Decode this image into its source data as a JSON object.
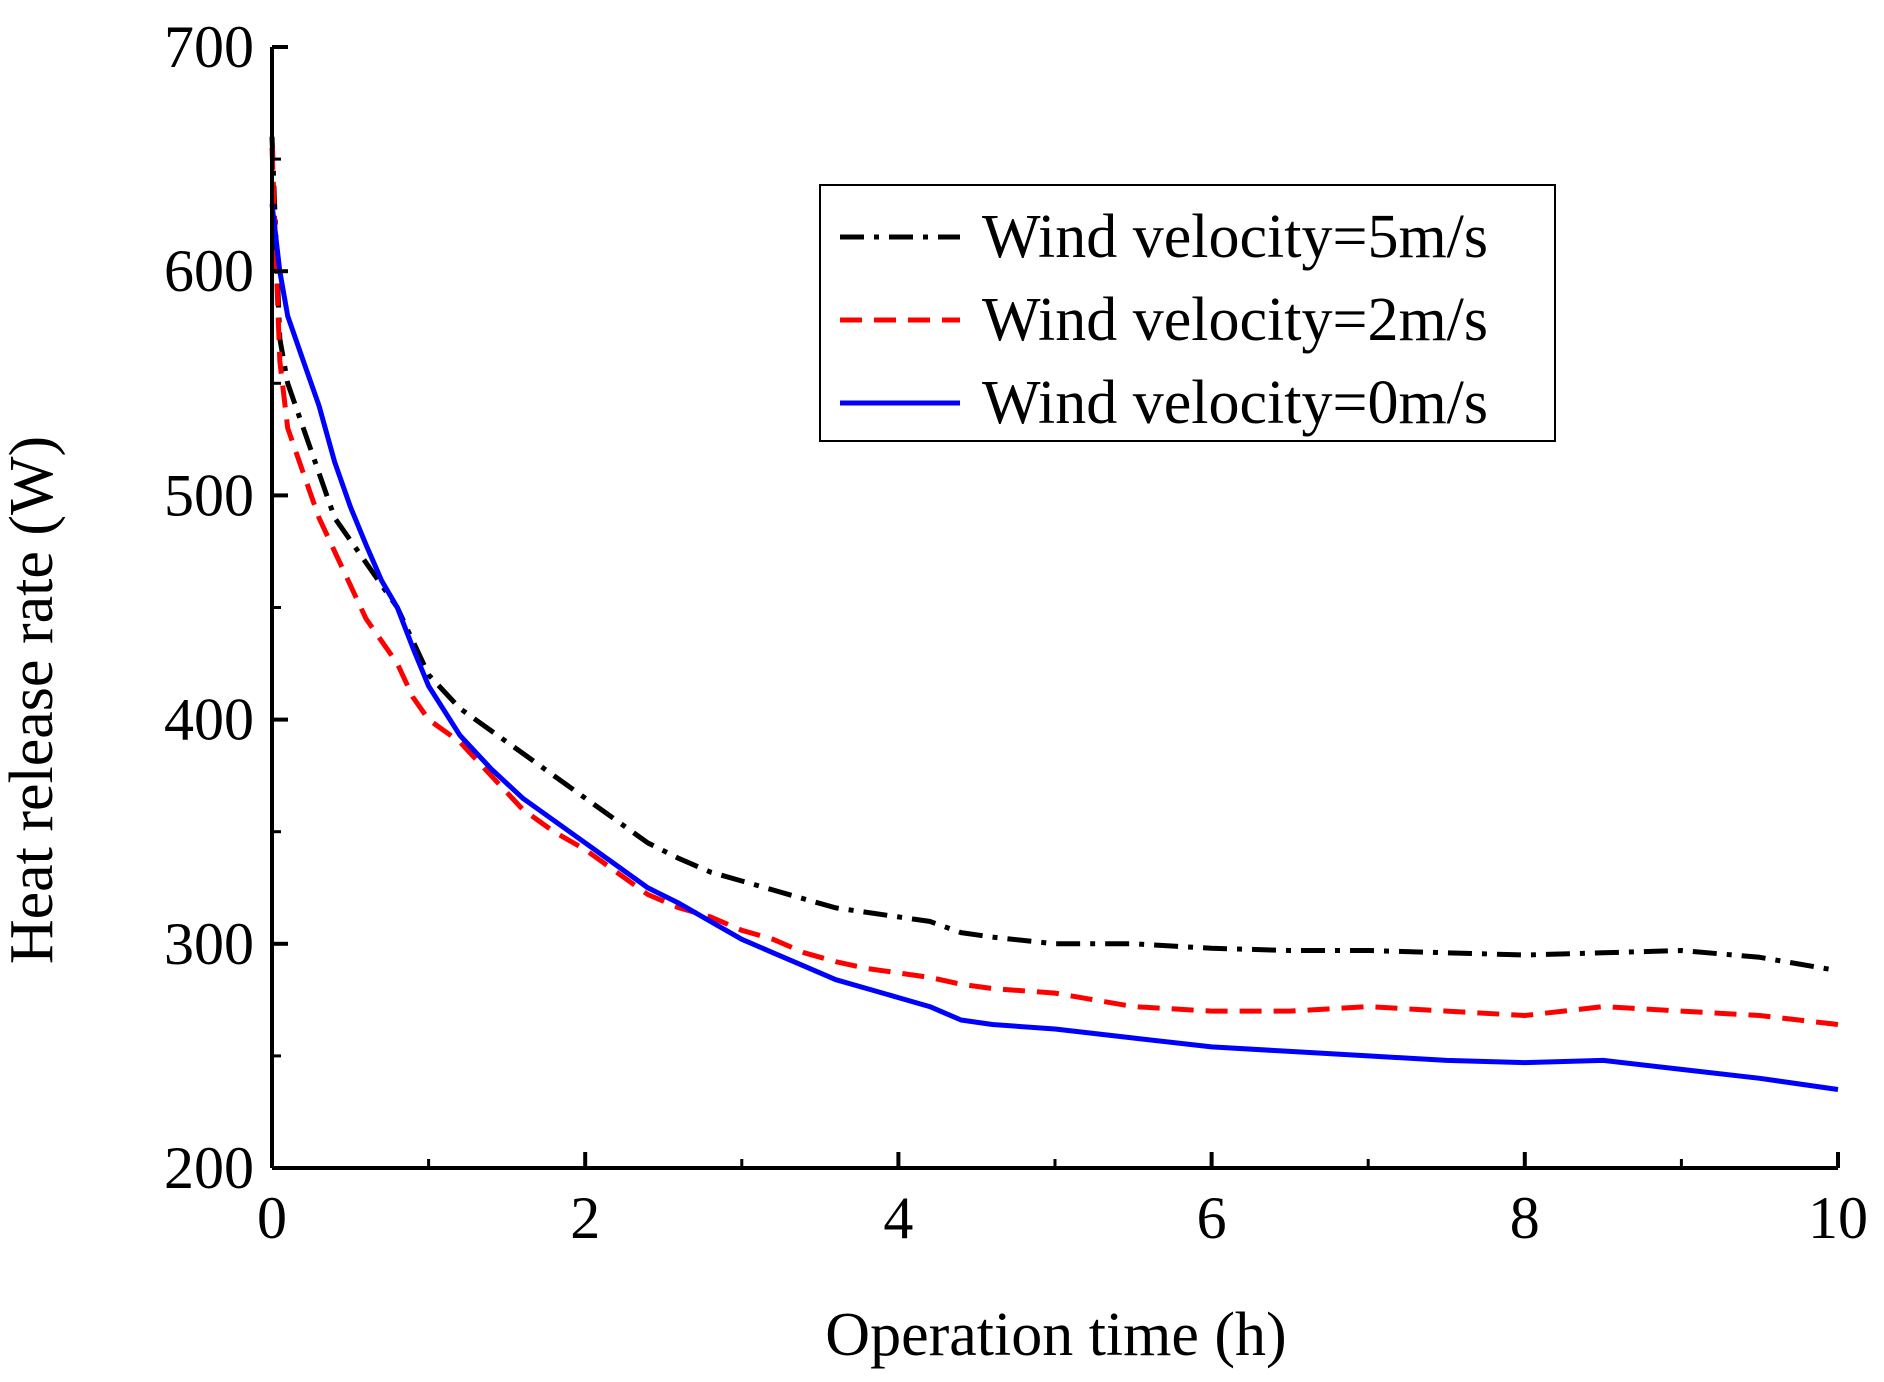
{
  "chart_data": {
    "type": "line",
    "title": "",
    "xlabel": "Operation time (h)",
    "ylabel": "Heat release rate (W)",
    "xlim": [
      0,
      10
    ],
    "ylim": [
      200,
      700
    ],
    "x_ticks": [
      "0",
      "2",
      "4",
      "6",
      "8",
      "10"
    ],
    "y_ticks": [
      "200",
      "300",
      "400",
      "500",
      "600",
      "700"
    ],
    "grid": false,
    "legend_position": "top-right",
    "series": [
      {
        "name": "Wind velocity=5m/s",
        "color": "#000000",
        "dash": "dash-dot",
        "x": [
          0,
          0.05,
          0.1,
          0.2,
          0.3,
          0.4,
          0.5,
          0.6,
          0.7,
          0.8,
          0.9,
          1.0,
          1.2,
          1.4,
          1.6,
          1.8,
          2.0,
          2.2,
          2.4,
          2.6,
          2.8,
          3.0,
          3.2,
          3.4,
          3.6,
          3.8,
          4.0,
          4.2,
          4.4,
          4.6,
          5.0,
          5.5,
          6.0,
          6.5,
          7.0,
          7.5,
          8.0,
          8.5,
          9.0,
          9.5,
          10.0
        ],
        "values": [
          660,
          570,
          550,
          530,
          510,
          490,
          480,
          470,
          460,
          450,
          435,
          420,
          405,
          395,
          385,
          375,
          365,
          355,
          345,
          338,
          332,
          328,
          324,
          320,
          316,
          314,
          312,
          310,
          305,
          303,
          300,
          300,
          298,
          297,
          297,
          296,
          295,
          296,
          297,
          294,
          288
        ]
      },
      {
        "name": "Wind velocity=2m/s",
        "color": "#ff0000",
        "dash": "dashed",
        "x": [
          0,
          0.05,
          0.1,
          0.2,
          0.3,
          0.4,
          0.5,
          0.6,
          0.7,
          0.8,
          0.9,
          1.0,
          1.2,
          1.4,
          1.6,
          1.8,
          2.0,
          2.2,
          2.4,
          2.6,
          2.8,
          3.0,
          3.2,
          3.4,
          3.6,
          3.8,
          4.0,
          4.2,
          4.4,
          4.6,
          5.0,
          5.5,
          6.0,
          6.5,
          7.0,
          7.5,
          8.0,
          8.5,
          9.0,
          9.5,
          10.0
        ],
        "values": [
          655,
          560,
          530,
          510,
          490,
          475,
          460,
          445,
          435,
          425,
          410,
          400,
          390,
          375,
          360,
          350,
          342,
          332,
          322,
          316,
          312,
          306,
          302,
          296,
          292,
          289,
          287,
          285,
          282,
          280,
          278,
          272,
          270,
          270,
          272,
          270,
          268,
          272,
          270,
          268,
          264
        ]
      },
      {
        "name": "Wind velocity=0m/s",
        "color": "#0000ff",
        "dash": "solid",
        "x": [
          0,
          0.05,
          0.1,
          0.2,
          0.3,
          0.4,
          0.5,
          0.6,
          0.7,
          0.8,
          0.9,
          1.0,
          1.2,
          1.4,
          1.6,
          1.8,
          2.0,
          2.2,
          2.4,
          2.6,
          2.8,
          3.0,
          3.2,
          3.4,
          3.6,
          3.8,
          4.0,
          4.2,
          4.4,
          4.6,
          5.0,
          5.5,
          6.0,
          6.5,
          7.0,
          7.5,
          8.0,
          8.5,
          9.0,
          9.5,
          10.0
        ],
        "values": [
          630,
          600,
          580,
          560,
          540,
          515,
          495,
          478,
          462,
          450,
          432,
          415,
          393,
          378,
          365,
          355,
          345,
          335,
          325,
          318,
          310,
          302,
          296,
          290,
          284,
          280,
          276,
          272,
          266,
          264,
          262,
          258,
          254,
          252,
          250,
          248,
          247,
          248,
          244,
          240,
          235
        ]
      }
    ]
  }
}
